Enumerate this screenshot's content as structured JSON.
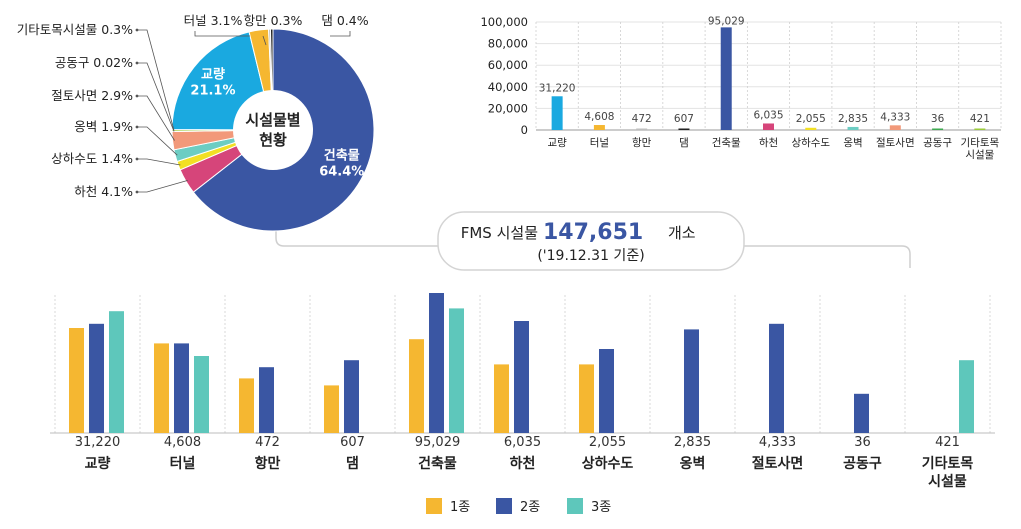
{
  "summary": {
    "prefix": "FMS 시설물",
    "count": "147,651",
    "suffix": "개소",
    "date": "('19.12.31 기준)"
  },
  "pie_center": {
    "line1": "시설물별",
    "line2": "현황"
  },
  "colors": {
    "grade1": "#F5B731",
    "grade2": "#3A56A3",
    "grade3": "#5EC7BB",
    "bridge": "#1AA9E0",
    "building": "#3A56A3",
    "river": "#D6457A",
    "sewer": "#F2E024",
    "retaining": "#6CCDC3",
    "slope": "#F2997A",
    "tunnel": "#F5B731",
    "dam": "#222222",
    "port": "#BFBFBF",
    "conduit": "#3FAA52",
    "other": "#9BCB3B"
  },
  "chart_data": [
    {
      "type": "pie",
      "title": "시설물별 현황",
      "slices": [
        {
          "name": "건축물",
          "percent": 64.4,
          "label": "건축물\n64.4%",
          "color": "#3A56A3",
          "label_mode": "inside"
        },
        {
          "name": "하천",
          "percent": 4.1,
          "label": "하천 4.1%",
          "color": "#D6457A",
          "label_mode": "left"
        },
        {
          "name": "상하수도",
          "percent": 1.4,
          "label": "상하수도 1.4%",
          "color": "#F2E024",
          "label_mode": "left"
        },
        {
          "name": "옹벽",
          "percent": 1.9,
          "label": "옹벽 1.9%",
          "color": "#6CCDC3",
          "label_mode": "left"
        },
        {
          "name": "절토사면",
          "percent": 2.9,
          "label": "절토사면 2.9%",
          "color": "#F2997A",
          "label_mode": "left"
        },
        {
          "name": "공동구",
          "percent": 0.02,
          "label": "공동구 0.02%",
          "color": "#3FAA52",
          "label_mode": "left"
        },
        {
          "name": "기타토목시설물",
          "percent": 0.3,
          "label": "기타토목시설물 0.3%",
          "color": "#9BCB3B",
          "label_mode": "left"
        },
        {
          "name": "교량",
          "percent": 21.1,
          "label": "교량\n21.1%",
          "color": "#1AA9E0",
          "label_mode": "inside"
        },
        {
          "name": "터널",
          "percent": 3.1,
          "label": "터널  3.1%",
          "color": "#F5B731",
          "label_mode": "top"
        },
        {
          "name": "항만",
          "percent": 0.3,
          "label": "항만 0.3%",
          "color": "#BFBFBF",
          "label_mode": "top"
        },
        {
          "name": "댐",
          "percent": 0.4,
          "label": "댐 0.4%",
          "color": "#222222",
          "label_mode": "top"
        }
      ]
    },
    {
      "type": "bar",
      "title": "",
      "categories": [
        "교량",
        "터널",
        "항만",
        "댐",
        "건축물",
        "하천",
        "상하수도",
        "옹벽",
        "절토사면",
        "공동구",
        "기타토목\n시설물"
      ],
      "values": [
        31220,
        4608,
        472,
        607,
        95029,
        6035,
        2055,
        2835,
        4333,
        36,
        421
      ],
      "value_labels": [
        "31,220",
        "4,608",
        "472",
        "607",
        "95,029",
        "6,035",
        "2,055",
        "2,835",
        "4,333",
        "36",
        "421"
      ],
      "bar_colors": [
        "#1AA9E0",
        "#F5B731",
        "#BFBFBF",
        "#222222",
        "#3A56A3",
        "#D6457A",
        "#F2E024",
        "#6CCDC3",
        "#F2997A",
        "#3FAA52",
        "#9BCB3B"
      ],
      "ylim": [
        0,
        100000
      ],
      "yticks": [
        0,
        20000,
        40000,
        60000,
        80000,
        100000
      ],
      "ytick_labels": [
        "0",
        "20,000",
        "40,000",
        "60,000",
        "80,000",
        "100,000"
      ],
      "grid": true
    },
    {
      "type": "bar",
      "title": "",
      "categories": [
        "교량",
        "터널",
        "항만",
        "댐",
        "건축물",
        "하천",
        "상하수도",
        "옹벽",
        "절토사면",
        "공동구",
        "기타토목\n시설물"
      ],
      "totals": [
        "31,220",
        "4,608",
        "472",
        "607",
        "95,029",
        "6,035",
        "2,055",
        "2,835",
        "4,333",
        "36",
        "421"
      ],
      "series": [
        {
          "name": "1종",
          "values": [
            0.75,
            0.64,
            0.39,
            0.34,
            0.67,
            0.49,
            0.49,
            null,
            null,
            null,
            null
          ]
        },
        {
          "name": "2종",
          "values": [
            0.78,
            0.64,
            0.47,
            0.52,
            1.0,
            0.8,
            0.6,
            0.74,
            0.78,
            0.28,
            null
          ]
        },
        {
          "name": "3종",
          "values": [
            0.87,
            0.55,
            null,
            null,
            0.89,
            null,
            null,
            null,
            null,
            null,
            0.52
          ]
        }
      ],
      "value_scale": "relative bar height (0-1), no numeric axis shown",
      "legend": [
        "1종",
        "2종",
        "3종"
      ],
      "legend_position": "bottom-center"
    }
  ]
}
